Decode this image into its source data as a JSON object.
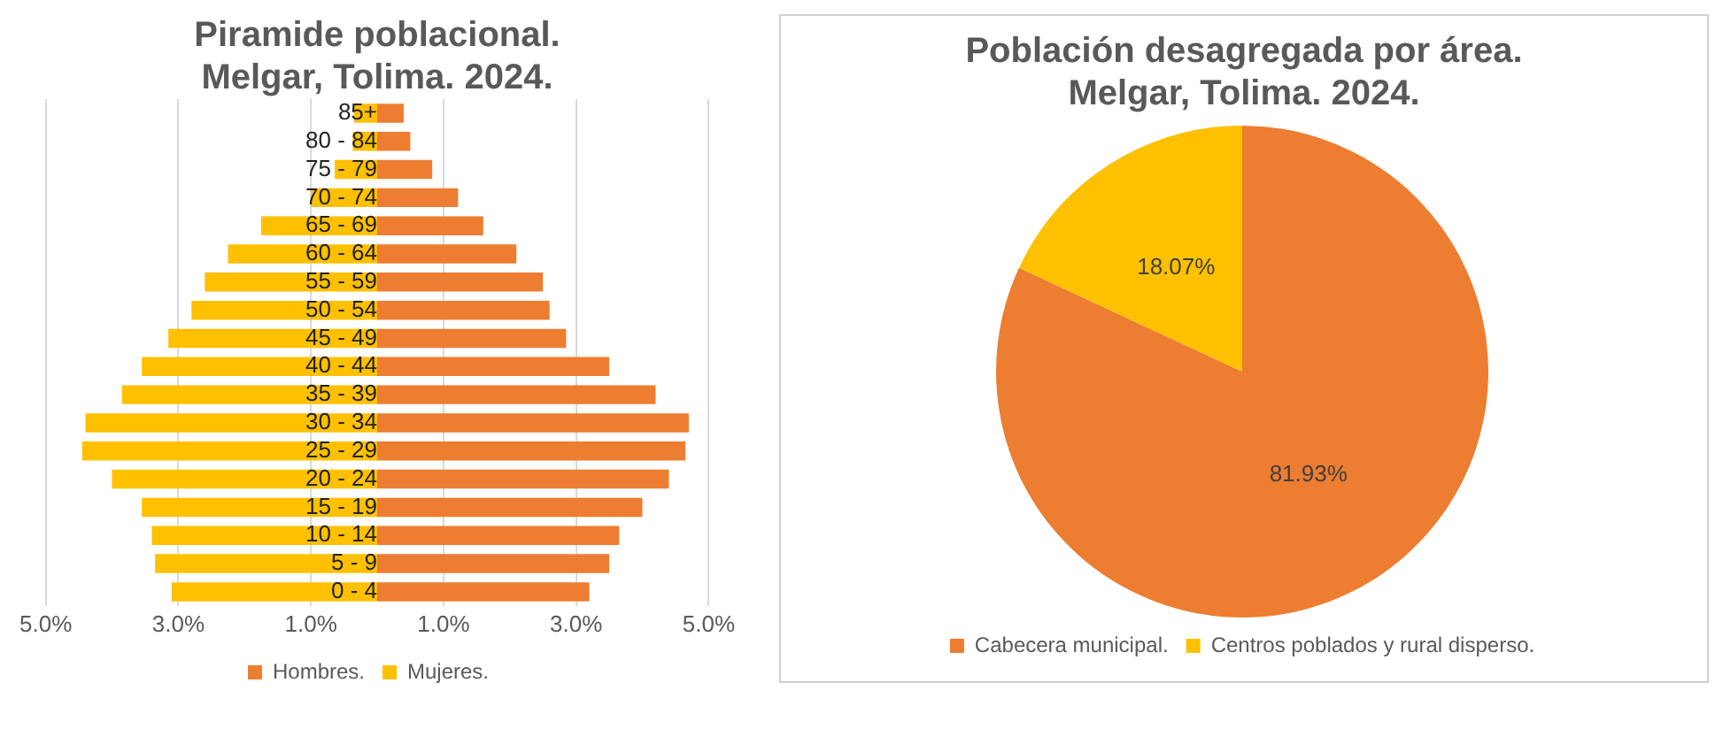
{
  "chart_data": [
    {
      "type": "bar",
      "title": "Piramide poblacional.\nMelgar, Tolima. 2024.",
      "orientation": "horizontal",
      "stacked": true,
      "categories": [
        "85+",
        "80 - 84",
        "75 - 79",
        "70 - 74",
        "65 - 69",
        "60 - 64",
        "55 - 59",
        "50 - 54",
        "45 - 49",
        "40 - 44",
        "35 - 39",
        "30 - 34",
        "25 - 29",
        "20 - 24",
        "15 - 19",
        "10 - 14",
        "5 - 9",
        "0 - 4"
      ],
      "series": [
        {
          "name": "Hombres.",
          "color": "#ed7d31",
          "values": [
            0.4,
            0.5,
            0.83,
            1.22,
            1.6,
            2.1,
            2.5,
            2.6,
            2.85,
            3.5,
            4.2,
            4.7,
            4.65,
            4.4,
            4.0,
            3.65,
            3.5,
            3.2
          ]
        },
        {
          "name": "Mujeres.",
          "color": "#ffc000",
          "values": [
            -0.35,
            -0.37,
            -0.64,
            -1.0,
            -1.75,
            -2.25,
            -2.6,
            -2.8,
            -3.15,
            -3.55,
            -3.85,
            -4.4,
            -4.45,
            -4.0,
            -3.55,
            -3.4,
            -3.35,
            -3.1
          ]
        }
      ],
      "xlim": [
        -5,
        5
      ],
      "xticks": [
        {
          "value": -5,
          "label": "5.0%"
        },
        {
          "value": -3,
          "label": "3.0%"
        },
        {
          "value": -1,
          "label": "1.0%"
        },
        {
          "value": 1,
          "label": "1.0%"
        },
        {
          "value": 3,
          "label": "3.0%"
        },
        {
          "value": 5,
          "label": "5.0%"
        }
      ],
      "grid": "x",
      "legend": "bottom"
    },
    {
      "type": "pie",
      "title": "Población desagregada por área.\nMelgar, Tolima. 2024.",
      "categories": [
        "Cabecera municipal.",
        "Centros poblados y rural disperso."
      ],
      "values": [
        81.93,
        18.07
      ],
      "colors": [
        "#ed7d31",
        "#ffc000"
      ],
      "value_labels": [
        "81.93%",
        "18.07%"
      ],
      "legend": "bottom"
    }
  ]
}
